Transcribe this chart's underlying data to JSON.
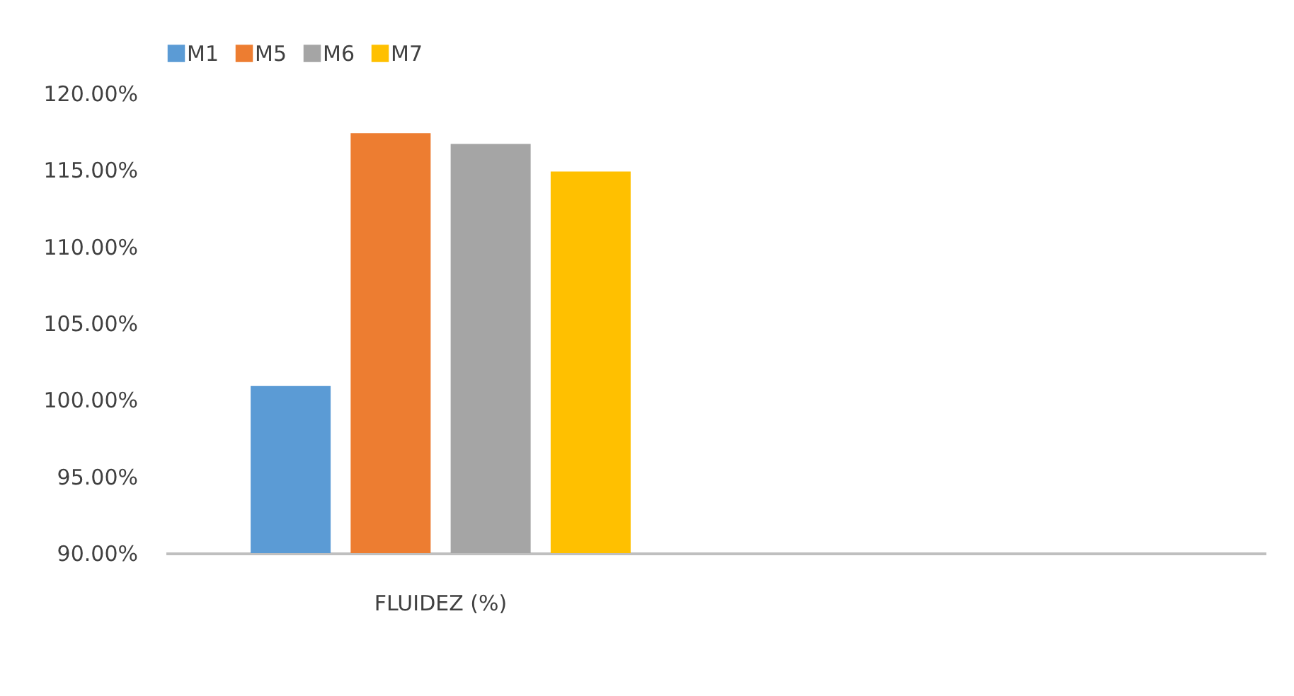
{
  "chart_data": {
    "type": "bar",
    "categories": [
      "FLUIDEZ (%)",
      null
    ],
    "series": [
      {
        "name": "M1",
        "color": "#5b9bd5",
        "values": [
          100.9,
          null
        ]
      },
      {
        "name": "M5",
        "color": "#ed7d31",
        "values": [
          117.4,
          null
        ]
      },
      {
        "name": "M6",
        "color": "#a5a5a5",
        "values": [
          116.7,
          null
        ]
      },
      {
        "name": "M7",
        "color": "#ffc000",
        "values": [
          114.9,
          null
        ]
      }
    ],
    "ylim": [
      90,
      120
    ],
    "yticks": [
      {
        "value": 90,
        "label": "90.00%"
      },
      {
        "value": 95,
        "label": "95.00%"
      },
      {
        "value": 100,
        "label": "100.00%"
      },
      {
        "value": 105,
        "label": "105.00%"
      },
      {
        "value": 110,
        "label": "110.00%"
      },
      {
        "value": 115,
        "label": "115.00%"
      },
      {
        "value": 120,
        "label": "120.00%"
      }
    ],
    "grid": false,
    "legend": "top"
  }
}
